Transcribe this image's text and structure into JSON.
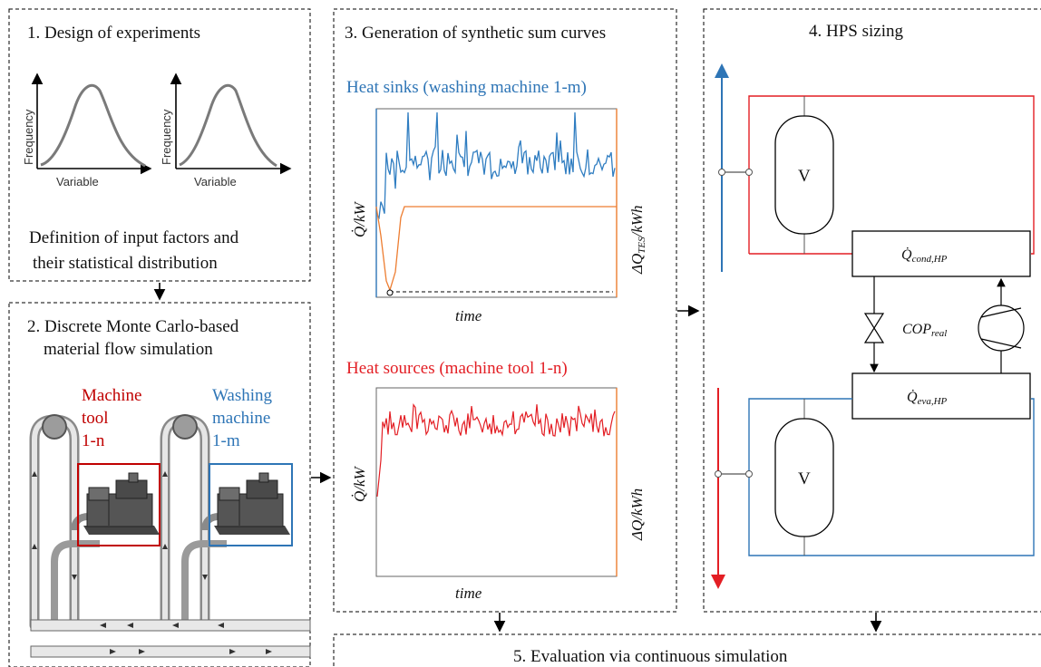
{
  "panels": {
    "p1": {
      "title": "1. Design of experiments",
      "y_label": "Frequency",
      "x_label": "Variable",
      "desc_line1": "Definition of input factors and",
      "desc_line2": "their statistical distribution"
    },
    "p2": {
      "title_line1": "2. Discrete Monte Carlo-based",
      "title_line2": "material flow simulation",
      "machine_tool": [
        "Machine",
        "tool",
        "1-n"
      ],
      "washing_machine": [
        "Washing",
        "machine",
        "1-m"
      ]
    },
    "p3": {
      "title": "3. Generation of synthetic sum curves",
      "sinks_title": "Heat sinks (washing machine 1-m)",
      "sources_title": "Heat sources (machine tool 1-n)",
      "q_label": "Q̇/kW",
      "tes_label": "ΔQ",
      "tes_sub": "TES",
      "tes_unit": "/kWh",
      "dq_label": "ΔQ/kWh",
      "time_label": "time"
    },
    "p4": {
      "title": "4. HPS sizing",
      "vessel_label": "V",
      "cond_label": "Q̇",
      "cond_sub": "cond,HP",
      "eva_label": "Q̇",
      "eva_sub": "eva,HP",
      "cop_label": "COP",
      "cop_sub": "real"
    },
    "p5": {
      "title": "5. Evaluation via continuous simulation"
    }
  },
  "colors": {
    "blue": "#2e75b6",
    "red": "#e31e24",
    "dark_red": "#c00000",
    "orange": "#ed7d31",
    "sink_line": "#2f7dc1"
  }
}
